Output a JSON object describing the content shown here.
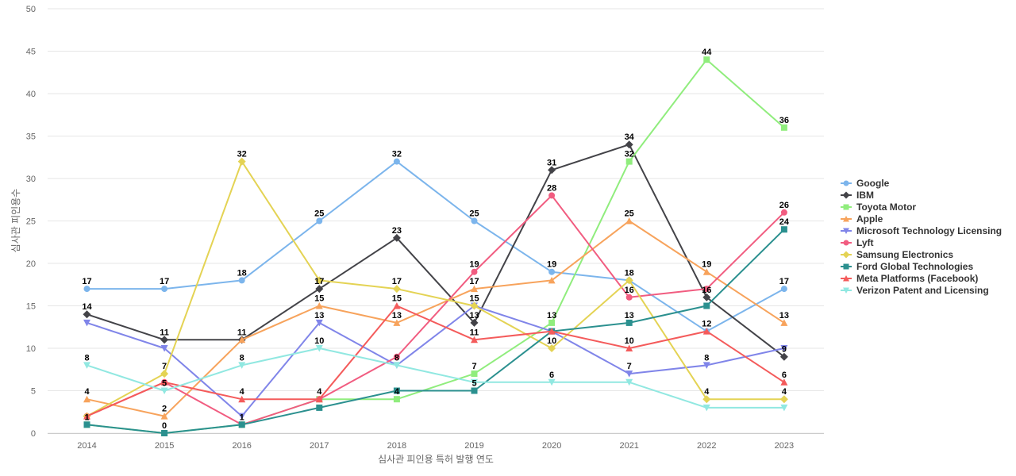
{
  "chart_data": {
    "type": "line",
    "xlabel": "심사관 피인용 특허 발행 연도",
    "ylabel": "심사관 피인용수",
    "x": [
      "2014",
      "2015",
      "2016",
      "2017",
      "2018",
      "2019",
      "2020",
      "2021",
      "2022",
      "2023"
    ],
    "ylim": [
      0,
      50
    ],
    "yticks": [
      0,
      5,
      10,
      15,
      20,
      25,
      30,
      35,
      40,
      45,
      50
    ],
    "grid": true,
    "legend_position": "right",
    "series": [
      {
        "name": "Google",
        "color": "#7cb5ec",
        "marker": "circle",
        "values": [
          17,
          17,
          18,
          25,
          32,
          25,
          19,
          18,
          12,
          17
        ]
      },
      {
        "name": "IBM",
        "color": "#434348",
        "marker": "diamond",
        "values": [
          14,
          11,
          11,
          17,
          23,
          13,
          31,
          34,
          16,
          9
        ]
      },
      {
        "name": "Toyota Motor",
        "color": "#90ed7d",
        "marker": "square",
        "values": [
          1,
          0,
          1,
          4,
          4,
          7,
          13,
          32,
          44,
          36
        ]
      },
      {
        "name": "Apple",
        "color": "#f7a35c",
        "marker": "triangle",
        "values": [
          4,
          2,
          11,
          15,
          13,
          17,
          18,
          25,
          19,
          13
        ]
      },
      {
        "name": "Microsoft Technology Licensing",
        "color": "#8085e9",
        "marker": "triangle-down",
        "values": [
          13,
          10,
          2,
          13,
          8,
          15,
          12,
          7,
          8,
          10
        ]
      },
      {
        "name": "Lyft",
        "color": "#f15c80",
        "marker": "circle",
        "values": [
          2,
          6,
          1,
          4,
          9,
          19,
          28,
          16,
          17,
          26
        ]
      },
      {
        "name": "Samsung Electronics",
        "color": "#e4d354",
        "marker": "diamond",
        "values": [
          2,
          7,
          32,
          18,
          17,
          15,
          10,
          18,
          4,
          4
        ]
      },
      {
        "name": "Ford Global Technologies",
        "color": "#2b908f",
        "marker": "square",
        "values": [
          1,
          0,
          1,
          3,
          5,
          5,
          12,
          13,
          15,
          24
        ]
      },
      {
        "name": "Meta Platforms (Facebook)",
        "color": "#f45b5b",
        "marker": "triangle",
        "values": [
          2,
          6,
          4,
          4,
          15,
          11,
          12,
          10,
          12,
          6
        ]
      },
      {
        "name": "Verizon Patent and Licensing",
        "color": "#91e8e1",
        "marker": "triangle-down",
        "values": [
          8,
          5,
          8,
          10,
          8,
          6,
          6,
          6,
          3,
          3
        ]
      }
    ],
    "data_labels": [
      {
        "x": "2014",
        "text": "17"
      },
      {
        "x": "2014",
        "text": "14"
      },
      {
        "x": "2014",
        "text": "8"
      },
      {
        "x": "2014",
        "text": "4"
      },
      {
        "x": "2014",
        "text": "1"
      },
      {
        "x": "2015",
        "text": "17"
      },
      {
        "x": "2015",
        "text": "11"
      },
      {
        "x": "2015",
        "text": "7"
      },
      {
        "x": "2015",
        "text": "5"
      },
      {
        "x": "2015",
        "text": "2"
      },
      {
        "x": "2015",
        "text": "0"
      },
      {
        "x": "2016",
        "text": "32"
      },
      {
        "x": "2016",
        "text": "18"
      },
      {
        "x": "2016",
        "text": "11"
      },
      {
        "x": "2016",
        "text": "8"
      },
      {
        "x": "2016",
        "text": "4"
      },
      {
        "x": "2016",
        "text": "1"
      },
      {
        "x": "2017",
        "text": "25"
      },
      {
        "x": "2017",
        "text": "17"
      },
      {
        "x": "2017",
        "text": "15"
      },
      {
        "x": "2017",
        "text": "13"
      },
      {
        "x": "2017",
        "text": "10"
      },
      {
        "x": "2017",
        "text": "4"
      },
      {
        "x": "2018",
        "text": "32"
      },
      {
        "x": "2018",
        "text": "23"
      },
      {
        "x": "2018",
        "text": "17"
      },
      {
        "x": "2018",
        "text": "15"
      },
      {
        "x": "2018",
        "text": "13"
      },
      {
        "x": "2018",
        "text": "8"
      },
      {
        "x": "2018",
        "text": "4"
      },
      {
        "x": "2019",
        "text": "25"
      },
      {
        "x": "2019",
        "text": "19"
      },
      {
        "x": "2019",
        "text": "17"
      },
      {
        "x": "2019",
        "text": "15"
      },
      {
        "x": "2019",
        "text": "13"
      },
      {
        "x": "2019",
        "text": "11"
      },
      {
        "x": "2019",
        "text": "7"
      },
      {
        "x": "2019",
        "text": "5"
      },
      {
        "x": "2020",
        "text": "31"
      },
      {
        "x": "2020",
        "text": "28"
      },
      {
        "x": "2020",
        "text": "19"
      },
      {
        "x": "2020",
        "text": "13"
      },
      {
        "x": "2020",
        "text": "10"
      },
      {
        "x": "2020",
        "text": "6"
      },
      {
        "x": "2021",
        "text": "34"
      },
      {
        "x": "2021",
        "text": "32"
      },
      {
        "x": "2021",
        "text": "25"
      },
      {
        "x": "2021",
        "text": "18"
      },
      {
        "x": "2021",
        "text": "16"
      },
      {
        "x": "2021",
        "text": "13"
      },
      {
        "x": "2021",
        "text": "10"
      },
      {
        "x": "2021",
        "text": "7"
      },
      {
        "x": "2022",
        "text": "44"
      },
      {
        "x": "2022",
        "text": "19"
      },
      {
        "x": "2022",
        "text": "16"
      },
      {
        "x": "2022",
        "text": "12"
      },
      {
        "x": "2022",
        "text": "8"
      },
      {
        "x": "2022",
        "text": "4"
      },
      {
        "x": "2023",
        "text": "36"
      },
      {
        "x": "2023",
        "text": "26"
      },
      {
        "x": "2023",
        "text": "24"
      },
      {
        "x": "2023",
        "text": "17"
      },
      {
        "x": "2023",
        "text": "13"
      },
      {
        "x": "2023",
        "text": "9"
      },
      {
        "x": "2023",
        "text": "6"
      },
      {
        "x": "2023",
        "text": "4"
      }
    ]
  }
}
